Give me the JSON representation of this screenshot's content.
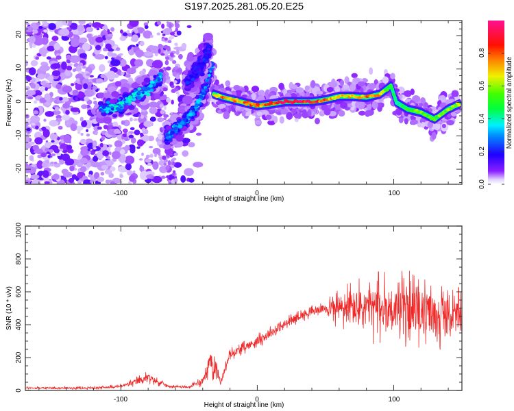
{
  "chart_data": [
    {
      "type": "heatmap",
      "title": "S197.2025.281.05.20.E25",
      "xlabel": "Height of straight line (km)",
      "ylabel": "Frequency (Hz)",
      "xlim": [
        -170,
        150
      ],
      "ylim": [
        -24.5,
        24.5
      ],
      "xticks": [
        -100,
        0,
        100
      ],
      "yticks": [
        -20,
        -10,
        0,
        10,
        20
      ],
      "colorbar": {
        "label": "Normalized spectral amplitude",
        "range": [
          0,
          1
        ],
        "ticks": [
          0.0,
          0.2,
          0.4,
          0.6,
          0.8
        ],
        "colors": [
          "#e6d8ff",
          "#7000ff",
          "#0000ff",
          "#00ffff",
          "#00ff00",
          "#ffff00",
          "#ff0000",
          "#ff1090"
        ]
      },
      "ridge": {
        "description": "main frequency track (km, Hz)",
        "x": [
          -32,
          -25,
          -15,
          -5,
          0,
          10,
          20,
          30,
          40,
          50,
          60,
          70,
          80,
          90,
          98,
          102,
          110,
          120,
          130,
          140,
          148
        ],
        "y": [
          2.5,
          1.5,
          0.5,
          -0.5,
          -1,
          -0.5,
          0.2,
          0.2,
          0.2,
          0.8,
          1.8,
          1.8,
          1.5,
          2.5,
          5,
          0,
          -2,
          -3,
          -5,
          -2,
          -0.5
        ],
        "amplitude": [
          0.7,
          0.8,
          0.85,
          0.8,
          0.8,
          0.85,
          0.95,
          0.98,
          0.95,
          0.85,
          0.7,
          0.75,
          0.8,
          0.8,
          0.5,
          0.45,
          0.55,
          0.6,
          0.6,
          0.65,
          0.7
        ]
      },
      "branches": [
        {
          "description": "rising diagonal band",
          "x": [
            -115,
            -100,
            -90,
            -80,
            -70
          ],
          "y": [
            -2,
            -1,
            2,
            4,
            8
          ],
          "amplitude": 0.35
        },
        {
          "description": "lower steep band",
          "x": [
            -67,
            -60,
            -52,
            -45,
            -38,
            -33
          ],
          "y": [
            -11,
            -8,
            -5,
            -2,
            4,
            12
          ],
          "amplitude": 0.3
        },
        {
          "description": "upper steep band",
          "x": [
            -52,
            -45,
            -40,
            -35
          ],
          "y": [
            6,
            9,
            12,
            16
          ],
          "amplitude": 0.2
        }
      ]
    },
    {
      "type": "line",
      "xlabel": "Height of straight line (km)",
      "ylabel": "SNR (10 * v/v)",
      "xlim": [
        -170,
        150
      ],
      "ylim": [
        0,
        1000
      ],
      "xticks": [
        -100,
        0,
        100
      ],
      "yticks": [
        0,
        200,
        400,
        600,
        800,
        1000
      ],
      "series": [
        {
          "name": "SNR",
          "color": "#f02828",
          "envelope_x": [
            -170,
            -120,
            -100,
            -90,
            -80,
            -75,
            -65,
            -50,
            -40,
            -35,
            -30,
            -27,
            -20,
            -10,
            0,
            10,
            20,
            30,
            40,
            50,
            60,
            70,
            80,
            90,
            100,
            110,
            120,
            130,
            140,
            150
          ],
          "envelope_mean": [
            15,
            15,
            25,
            50,
            80,
            60,
            25,
            20,
            60,
            170,
            140,
            50,
            220,
            260,
            300,
            350,
            400,
            450,
            480,
            500,
            500,
            500,
            500,
            500,
            500,
            490,
            480,
            460,
            450,
            450
          ],
          "envelope_spread": [
            10,
            10,
            15,
            30,
            40,
            30,
            10,
            10,
            40,
            110,
            90,
            30,
            40,
            40,
            45,
            45,
            45,
            40,
            40,
            40,
            150,
            200,
            220,
            230,
            240,
            240,
            230,
            220,
            200,
            170
          ]
        }
      ]
    }
  ]
}
